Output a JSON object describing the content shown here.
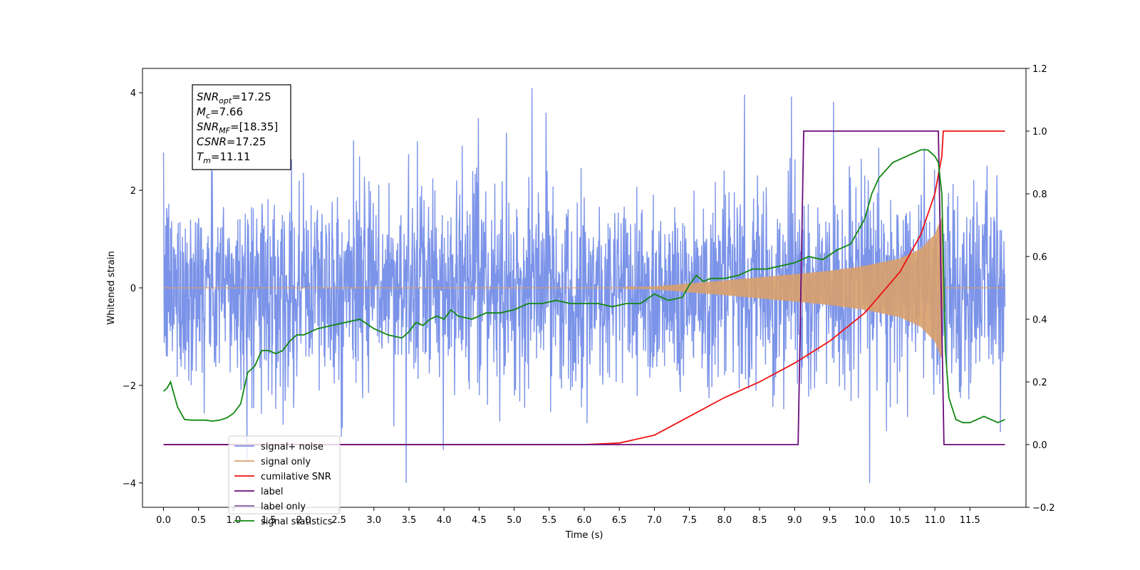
{
  "chart_data": {
    "type": "line",
    "xlabel": "Time (s)",
    "ylabel": "Whitened strain",
    "x_ticks": [
      "0.0",
      "0.5",
      "1.0",
      "1.5",
      "2.0",
      "2.5",
      "3.0",
      "3.5",
      "4.0",
      "4.5",
      "5.0",
      "5.5",
      "6.0",
      "6.5",
      "7.0",
      "7.5",
      "8.0",
      "8.5",
      "9.0",
      "9.5",
      "10.0",
      "10.5",
      "11.0",
      "11.5"
    ],
    "y_left_ticks": [
      "−4",
      "−2",
      "0",
      "2",
      "4"
    ],
    "y_right_ticks": [
      "−0.2",
      "0.0",
      "0.2",
      "0.4",
      "0.6",
      "0.8",
      "1.0",
      "1.2"
    ],
    "xlim": [
      -0.3,
      12.3
    ],
    "ylim_left": [
      -4.5,
      4.5
    ],
    "ylim_right": [
      -0.2,
      1.2
    ],
    "grid": false,
    "legend_placement": "lower-left",
    "annotation": [
      {
        "name": "SNR",
        "sub": "opt",
        "value": "=17.25"
      },
      {
        "name": "M",
        "sub": "c",
        "value": "=7.66"
      },
      {
        "name": "SNR",
        "sub": "MF",
        "value": "=[18.35]"
      },
      {
        "name": "CSNR",
        "sub": "",
        "value": "=17.25"
      },
      {
        "name": "T",
        "sub": "m",
        "value": "=11.11"
      }
    ],
    "series": [
      {
        "name": "signal+ noise",
        "axis": "left",
        "color": "#7b93e8",
        "description_values": {
          "noise_std": 1.0,
          "t_start": 0.0,
          "t_end": 12.0
        }
      },
      {
        "name": "signal only",
        "axis": "left",
        "color": "#d9a06b",
        "envelope": {
          "x": [
            0.0,
            6.5,
            7.0,
            8.0,
            9.0,
            9.5,
            10.0,
            10.5,
            10.8,
            11.0,
            11.1,
            11.12,
            12.0
          ],
          "y": [
            0.0,
            0.0,
            0.03,
            0.15,
            0.28,
            0.35,
            0.45,
            0.6,
            0.8,
            1.1,
            1.45,
            0.0,
            0.0
          ]
        }
      },
      {
        "name": "cumilative SNR",
        "axis": "right",
        "color": "#ee1111",
        "x": [
          0.0,
          6.0,
          6.5,
          7.0,
          7.5,
          8.0,
          8.5,
          9.0,
          9.5,
          10.0,
          10.5,
          10.8,
          11.0,
          11.1,
          11.12,
          12.0
        ],
        "y": [
          0.0,
          0.0,
          0.005,
          0.03,
          0.09,
          0.15,
          0.2,
          0.26,
          0.33,
          0.42,
          0.55,
          0.67,
          0.8,
          0.92,
          1.0,
          1.0
        ]
      },
      {
        "name": "label",
        "axis": "right",
        "color": "#6a0c7a",
        "x": [
          0.0,
          9.05,
          9.13,
          11.05,
          11.13,
          12.0
        ],
        "y": [
          0.0,
          0.0,
          1.0,
          1.0,
          0.0,
          0.0
        ]
      },
      {
        "name": "label only",
        "axis": "right",
        "color": "#8a5aa0",
        "x": [],
        "y": []
      },
      {
        "name": "signal statistics",
        "axis": "right",
        "color": "#118811",
        "x": [
          0.0,
          0.05,
          0.1,
          0.15,
          0.2,
          0.25,
          0.3,
          0.4,
          0.5,
          0.6,
          0.7,
          0.8,
          0.9,
          1.0,
          1.1,
          1.2,
          1.3,
          1.4,
          1.5,
          1.6,
          1.7,
          1.8,
          1.9,
          2.0,
          2.1,
          2.2,
          2.4,
          2.6,
          2.8,
          3.0,
          3.2,
          3.4,
          3.5,
          3.6,
          3.7,
          3.8,
          3.9,
          4.0,
          4.1,
          4.2,
          4.4,
          4.6,
          4.8,
          5.0,
          5.2,
          5.4,
          5.6,
          5.8,
          6.0,
          6.2,
          6.4,
          6.6,
          6.8,
          7.0,
          7.2,
          7.4,
          7.5,
          7.6,
          7.7,
          7.8,
          8.0,
          8.2,
          8.4,
          8.6,
          8.8,
          9.0,
          9.2,
          9.4,
          9.6,
          9.8,
          10.0,
          10.1,
          10.2,
          10.4,
          10.6,
          10.7,
          10.8,
          10.9,
          11.0,
          11.05,
          11.1,
          11.15,
          11.2,
          11.3,
          11.4,
          11.5,
          11.6,
          11.7,
          11.8,
          11.9,
          12.0
        ],
        "y": [
          0.17,
          0.18,
          0.2,
          0.16,
          0.12,
          0.1,
          0.08,
          0.078,
          0.078,
          0.078,
          0.075,
          0.078,
          0.085,
          0.1,
          0.13,
          0.23,
          0.25,
          0.3,
          0.3,
          0.29,
          0.3,
          0.33,
          0.35,
          0.35,
          0.36,
          0.37,
          0.38,
          0.39,
          0.4,
          0.37,
          0.35,
          0.34,
          0.36,
          0.39,
          0.38,
          0.4,
          0.41,
          0.4,
          0.43,
          0.41,
          0.4,
          0.42,
          0.42,
          0.43,
          0.45,
          0.45,
          0.46,
          0.45,
          0.45,
          0.45,
          0.44,
          0.45,
          0.45,
          0.48,
          0.46,
          0.47,
          0.51,
          0.54,
          0.52,
          0.53,
          0.53,
          0.54,
          0.56,
          0.56,
          0.57,
          0.58,
          0.6,
          0.59,
          0.62,
          0.64,
          0.72,
          0.8,
          0.85,
          0.9,
          0.92,
          0.93,
          0.94,
          0.94,
          0.92,
          0.9,
          0.8,
          0.3,
          0.15,
          0.08,
          0.07,
          0.07,
          0.08,
          0.09,
          0.08,
          0.07,
          0.08
        ]
      }
    ]
  }
}
